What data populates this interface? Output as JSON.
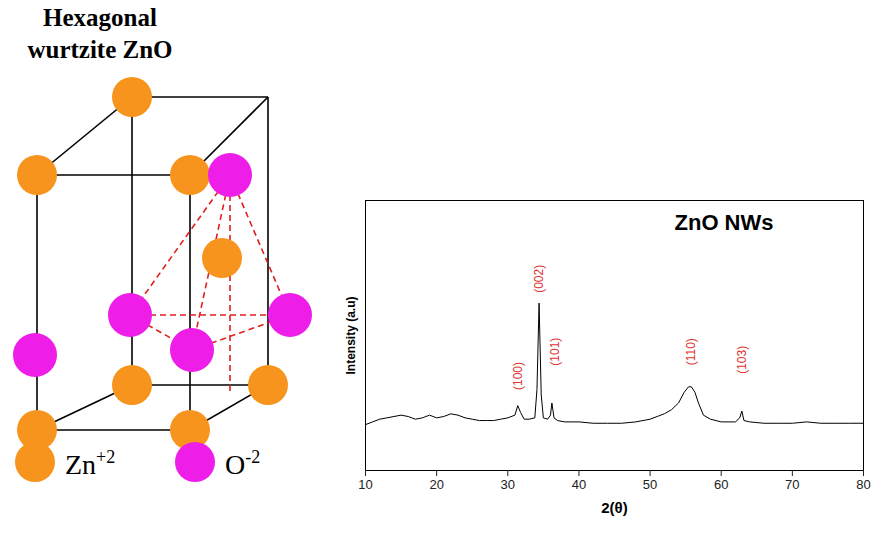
{
  "diagram": {
    "title": "Hexagonal wurtzite ZnO",
    "legend": [
      {
        "label": "Zn",
        "charge": "+2",
        "color": "#f7941d"
      },
      {
        "label": "O",
        "charge": "-2",
        "color": "#ee1ee8"
      }
    ]
  },
  "chart_data": {
    "type": "line",
    "title": "ZnO NWs",
    "xlabel": "2(θ)",
    "ylabel": "Intensity (a.u)",
    "x": [
      10,
      11,
      12,
      13,
      14,
      15,
      16,
      17,
      18,
      19,
      20,
      21,
      22,
      23,
      24,
      25,
      26,
      27,
      28,
      29,
      30,
      31,
      31.4,
      31.8,
      32.3,
      33,
      33.8,
      34.1,
      34.4,
      34.7,
      35,
      35.6,
      36,
      36.2,
      36.5,
      37,
      38,
      40,
      42,
      44,
      46,
      48,
      50,
      51,
      52,
      53,
      54,
      54.8,
      55.4,
      55.8,
      56.3,
      56.8,
      57.5,
      58.5,
      60,
      62,
      62.6,
      62.9,
      63.2,
      64,
      66,
      68,
      70,
      72,
      74,
      76,
      78,
      80
    ],
    "values": [
      17,
      18,
      19,
      19.5,
      20,
      20.5,
      20,
      19,
      19.5,
      20.5,
      19.5,
      20,
      21,
      20.5,
      19.5,
      19,
      18.5,
      18.5,
      18.5,
      19,
      19.5,
      20.5,
      24,
      21.5,
      19,
      19,
      19.5,
      30,
      62,
      28,
      19.5,
      19,
      20.5,
      25,
      19.5,
      18.5,
      18,
      18,
      17.5,
      17.5,
      17.5,
      18,
      19,
      20,
      21,
      22.5,
      25,
      29,
      31,
      31,
      29,
      25,
      20.5,
      19,
      18,
      18,
      19.5,
      22,
      18.5,
      18,
      17.5,
      17.5,
      17.5,
      18,
      17.5,
      17.5,
      17.5,
      17.5
    ],
    "color": "#000000",
    "annotations": [
      {
        "text": "(100)",
        "x": 31.4,
        "y": 35,
        "color": "#e0322e"
      },
      {
        "text": "(002)",
        "x": 34.4,
        "y": 71,
        "color": "#e0322e"
      },
      {
        "text": "(101)",
        "x": 36.6,
        "y": 44,
        "color": "#e0322e"
      },
      {
        "text": "(110)",
        "x": 55.8,
        "y": 44,
        "color": "#e0322e"
      },
      {
        "text": "(103)",
        "x": 62.9,
        "y": 41,
        "color": "#e0322e"
      }
    ],
    "xlim": [
      10,
      80
    ],
    "xticks": [
      10,
      20,
      30,
      40,
      50,
      60,
      70,
      80
    ],
    "ylim": [
      0,
      100
    ],
    "yticks": [],
    "tick_labels": "x",
    "grid": false
  }
}
